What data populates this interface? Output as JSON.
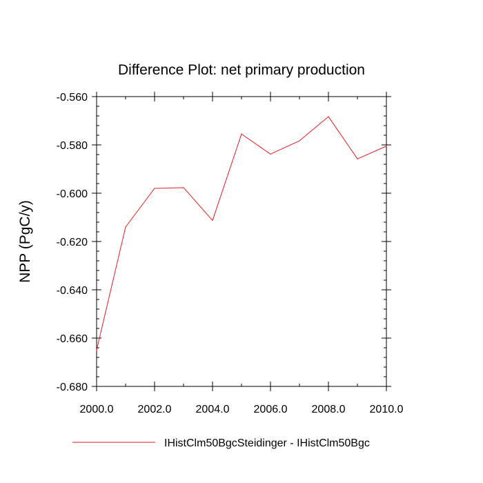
{
  "chart_data": {
    "type": "line",
    "title": "Difference Plot: net primary production",
    "xlabel": "",
    "ylabel": "NPP  (PgC/y)",
    "xlim": [
      2000,
      2010
    ],
    "ylim": [
      -0.68,
      -0.56
    ],
    "x_ticks": [
      "2000.0",
      "2002.0",
      "2004.0",
      "2006.0",
      "2008.0",
      "2010.0"
    ],
    "y_ticks": [
      "-0.560",
      "-0.580",
      "-0.600",
      "-0.620",
      "-0.640",
      "-0.660",
      "-0.680"
    ],
    "grid": false,
    "legend_position": "bottom",
    "series": [
      {
        "name": "IHistClm50BgcSteidinger - IHistClm50Bgc",
        "color": "#e8191e",
        "x": [
          2000,
          2001,
          2002,
          2003,
          2004,
          2005,
          2006,
          2007,
          2008,
          2009,
          2010
        ],
        "y": [
          -0.665,
          -0.614,
          -0.598,
          -0.5977,
          -0.6113,
          -0.5755,
          -0.5838,
          -0.5783,
          -0.5683,
          -0.5858,
          -0.5805
        ]
      }
    ]
  }
}
